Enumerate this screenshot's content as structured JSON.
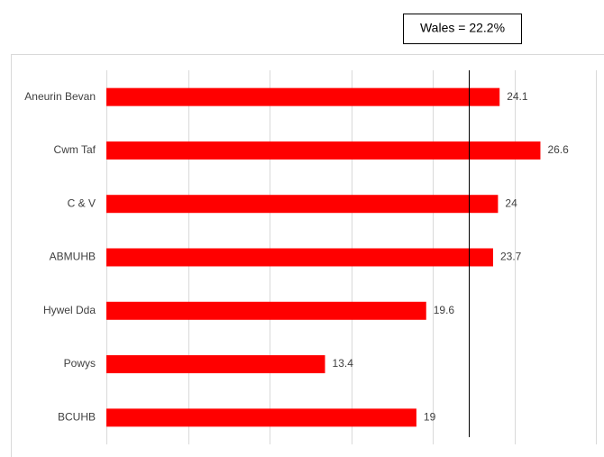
{
  "chart_data": {
    "type": "bar",
    "orientation": "horizontal",
    "categories": [
      "Aneurin Bevan",
      "Cwm Taf",
      "C & V",
      "ABMUHB",
      "Hywel Dda",
      "Powys",
      "BCUHB"
    ],
    "values": [
      24.1,
      26.6,
      24,
      23.7,
      19.6,
      13.4,
      19
    ],
    "color": "#ff0000",
    "xlim": [
      0,
      30
    ],
    "xticks": [
      0,
      5,
      10,
      15,
      20,
      25,
      30
    ],
    "grid": true,
    "reference_line": {
      "label": "Wales = 22.2%",
      "value": 22.2
    }
  }
}
